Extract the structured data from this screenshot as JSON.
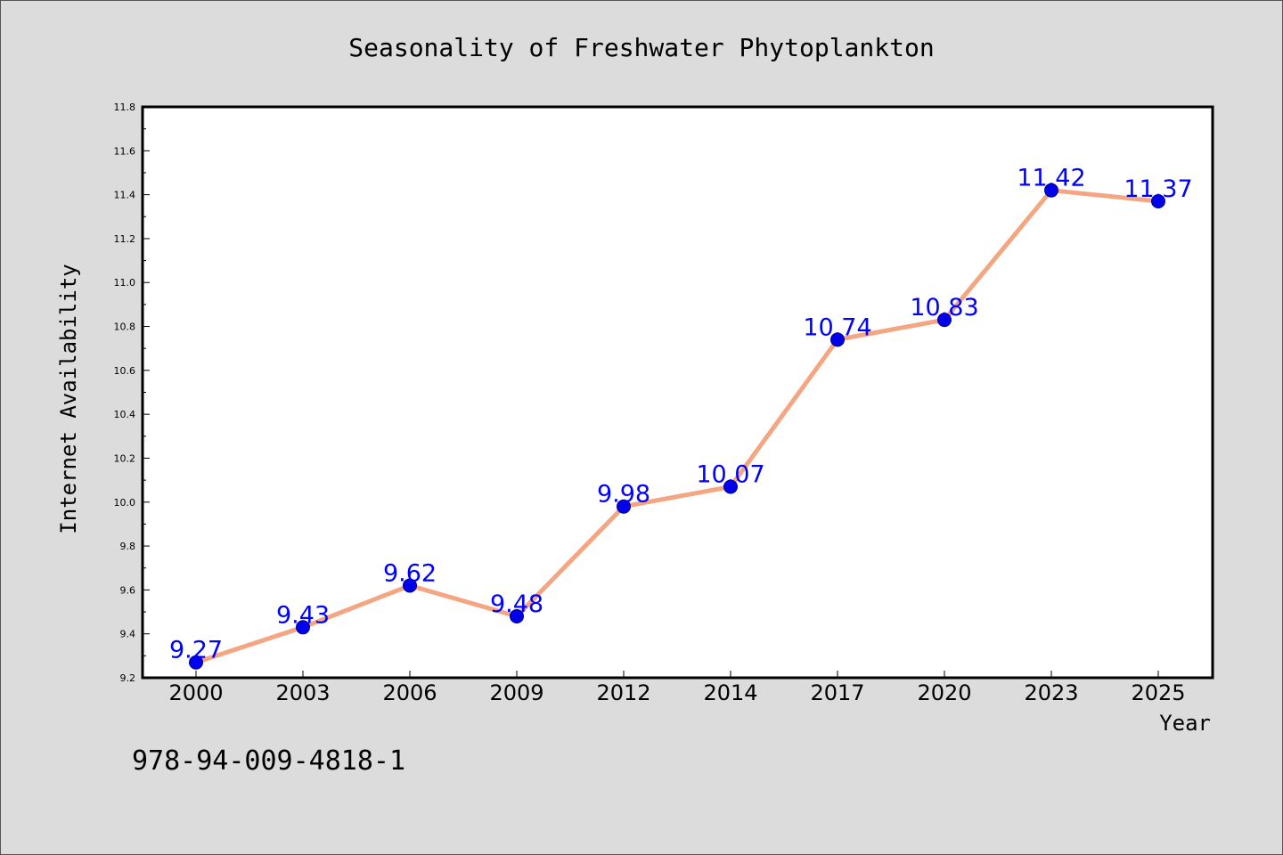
{
  "chart_data": {
    "type": "line",
    "title": "Seasonality of Freshwater Phytoplankton",
    "xlabel": "Year",
    "ylabel": "Internet Availability",
    "categories": [
      "2000",
      "2003",
      "2006",
      "2009",
      "2012",
      "2014",
      "2017",
      "2020",
      "2023",
      "2025"
    ],
    "series": [
      {
        "values": [
          9.27,
          9.43,
          9.62,
          9.48,
          9.98,
          10.07,
          10.74,
          10.83,
          11.42,
          11.37
        ]
      }
    ],
    "data_labels": [
      "9.27",
      "9.43",
      "9.62",
      "9.48",
      "9.98",
      "10.07",
      "10.74",
      "10.83",
      "11.42",
      "11.37"
    ],
    "ylim": [
      9.2,
      11.8
    ],
    "yticks": [
      "9.2",
      "9.4",
      "9.6",
      "9.8",
      "10.0",
      "10.2",
      "10.4",
      "10.6",
      "10.8",
      "11.0",
      "11.2",
      "11.4",
      "11.6",
      "11.8"
    ],
    "grid": false,
    "legend": "none",
    "colors": {
      "line": "#f4a582",
      "marker": "#0000ee",
      "label": "#0000ff",
      "background": "#dcdcdc",
      "plot": "#ffffff"
    }
  },
  "footer": {
    "isbn": "978-94-009-4818-1"
  }
}
